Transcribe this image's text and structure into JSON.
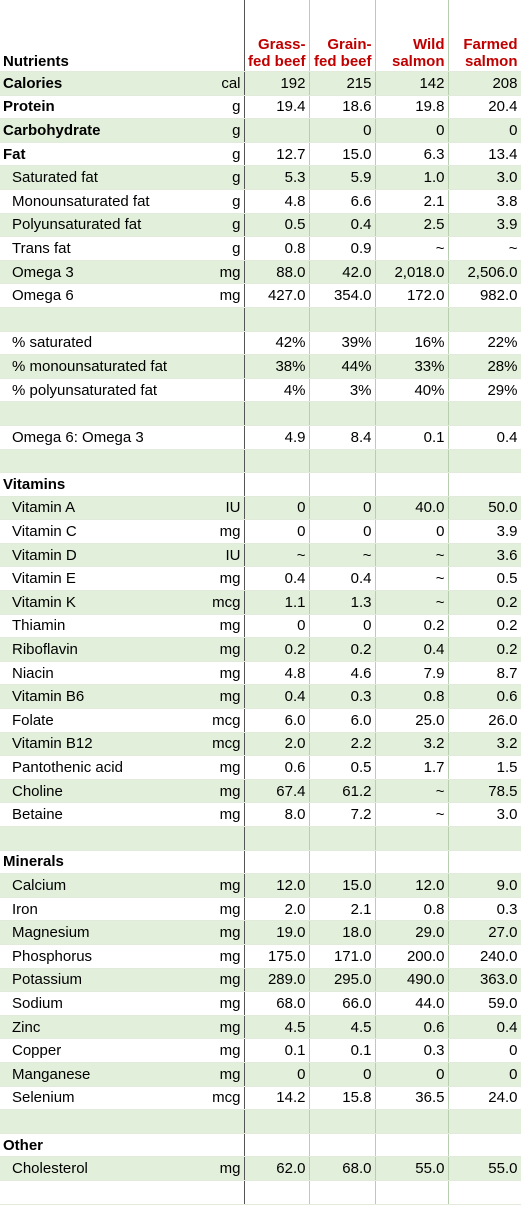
{
  "header": {
    "nutrients_label": "Nutrients",
    "columns": [
      "Grass-fed beef",
      "Grain-fed beef",
      "Wild salmon",
      "Farmed salmon"
    ]
  },
  "rows": [
    {
      "name": "Calories",
      "unit": "cal",
      "values": [
        "192",
        "215",
        "142",
        "208"
      ],
      "bold": true
    },
    {
      "name": "Protein",
      "unit": "g",
      "values": [
        "19.4",
        "18.6",
        "19.8",
        "20.4"
      ],
      "bold": true
    },
    {
      "name": "Carbohydrate",
      "unit": "g",
      "values": [
        "",
        "0",
        "0",
        "0"
      ],
      "bold": true
    },
    {
      "name": "Fat",
      "unit": "g",
      "values": [
        "12.7",
        "15.0",
        "6.3",
        "13.4"
      ],
      "bold": true
    },
    {
      "name": "Saturated fat",
      "unit": "g",
      "values": [
        "5.3",
        "5.9",
        "1.0",
        "3.0"
      ]
    },
    {
      "name": "Monounsaturated fat",
      "unit": "g",
      "values": [
        "4.8",
        "6.6",
        "2.1",
        "3.8"
      ]
    },
    {
      "name": "Polyunsaturated fat",
      "unit": "g",
      "values": [
        "0.5",
        "0.4",
        "2.5",
        "3.9"
      ]
    },
    {
      "name": "Trans fat",
      "unit": "g",
      "values": [
        "0.8",
        "0.9",
        "~",
        "~"
      ]
    },
    {
      "name": "Omega 3",
      "unit": "mg",
      "values": [
        "88.0",
        "42.0",
        "2,018.0",
        "2,506.0"
      ]
    },
    {
      "name": "Omega 6",
      "unit": "mg",
      "values": [
        "427.0",
        "354.0",
        "172.0",
        "982.0"
      ]
    },
    {
      "name": "",
      "unit": "",
      "values": [
        "",
        "",
        "",
        ""
      ],
      "blank": true
    },
    {
      "name": "% saturated",
      "unit": "",
      "values": [
        "42%",
        "39%",
        "16%",
        "22%"
      ]
    },
    {
      "name": "% monounsaturated fat",
      "unit": "",
      "values": [
        "38%",
        "44%",
        "33%",
        "28%"
      ]
    },
    {
      "name": "% polyunsaturated fat",
      "unit": "",
      "values": [
        "4%",
        "3%",
        "40%",
        "29%"
      ]
    },
    {
      "name": "",
      "unit": "",
      "values": [
        "",
        "",
        "",
        ""
      ],
      "blank": true
    },
    {
      "name": "Omega 6: Omega 3",
      "unit": "",
      "values": [
        "4.9",
        "8.4",
        "0.1",
        "0.4"
      ]
    },
    {
      "name": "",
      "unit": "",
      "values": [
        "",
        "",
        "",
        ""
      ],
      "blank": true
    },
    {
      "name": "Vitamins",
      "unit": "",
      "values": [
        "",
        "",
        "",
        ""
      ],
      "bold": true,
      "section": true
    },
    {
      "name": "Vitamin A",
      "unit": "IU",
      "values": [
        "0",
        "0",
        "40.0",
        "50.0"
      ]
    },
    {
      "name": "Vitamin C",
      "unit": "mg",
      "values": [
        "0",
        "0",
        "0",
        "3.9"
      ]
    },
    {
      "name": "Vitamin D",
      "unit": "IU",
      "values": [
        "~",
        "~",
        "~",
        "3.6"
      ]
    },
    {
      "name": "Vitamin E",
      "unit": "mg",
      "values": [
        "0.4",
        "0.4",
        "~",
        "0.5"
      ]
    },
    {
      "name": "Vitamin K",
      "unit": "mcg",
      "values": [
        "1.1",
        "1.3",
        "~",
        "0.2"
      ]
    },
    {
      "name": "Thiamin",
      "unit": "mg",
      "values": [
        "0",
        "0",
        "0.2",
        "0.2"
      ]
    },
    {
      "name": "Riboflavin",
      "unit": "mg",
      "values": [
        "0.2",
        "0.2",
        "0.4",
        "0.2"
      ]
    },
    {
      "name": "Niacin",
      "unit": "mg",
      "values": [
        "4.8",
        "4.6",
        "7.9",
        "8.7"
      ]
    },
    {
      "name": "Vitamin B6",
      "unit": "mg",
      "values": [
        "0.4",
        "0.3",
        "0.8",
        "0.6"
      ]
    },
    {
      "name": "Folate",
      "unit": "mcg",
      "values": [
        "6.0",
        "6.0",
        "25.0",
        "26.0"
      ]
    },
    {
      "name": "Vitamin B12",
      "unit": "mcg",
      "values": [
        "2.0",
        "2.2",
        "3.2",
        "3.2"
      ]
    },
    {
      "name": "Pantothenic acid",
      "unit": "mg",
      "values": [
        "0.6",
        "0.5",
        "1.7",
        "1.5"
      ]
    },
    {
      "name": "Choline",
      "unit": "mg",
      "values": [
        "67.4",
        "61.2",
        "~",
        "78.5"
      ]
    },
    {
      "name": "Betaine",
      "unit": "mg",
      "values": [
        "8.0",
        "7.2",
        "~",
        "3.0"
      ]
    },
    {
      "name": "",
      "unit": "",
      "values": [
        "",
        "",
        "",
        ""
      ],
      "blank": true
    },
    {
      "name": "Minerals",
      "unit": "",
      "values": [
        "",
        "",
        "",
        ""
      ],
      "bold": true,
      "section": true
    },
    {
      "name": "Calcium",
      "unit": "mg",
      "values": [
        "12.0",
        "15.0",
        "12.0",
        "9.0"
      ]
    },
    {
      "name": "Iron",
      "unit": "mg",
      "values": [
        "2.0",
        "2.1",
        "0.8",
        "0.3"
      ]
    },
    {
      "name": "Magnesium",
      "unit": "mg",
      "values": [
        "19.0",
        "18.0",
        "29.0",
        "27.0"
      ]
    },
    {
      "name": "Phosphorus",
      "unit": "mg",
      "values": [
        "175.0",
        "171.0",
        "200.0",
        "240.0"
      ]
    },
    {
      "name": "Potassium",
      "unit": "mg",
      "values": [
        "289.0",
        "295.0",
        "490.0",
        "363.0"
      ]
    },
    {
      "name": "Sodium",
      "unit": "mg",
      "values": [
        "68.0",
        "66.0",
        "44.0",
        "59.0"
      ]
    },
    {
      "name": "Zinc",
      "unit": "mg",
      "values": [
        "4.5",
        "4.5",
        "0.6",
        "0.4"
      ]
    },
    {
      "name": "Copper",
      "unit": "mg",
      "values": [
        "0.1",
        "0.1",
        "0.3",
        "0"
      ]
    },
    {
      "name": "Manganese",
      "unit": "mg",
      "values": [
        "0",
        "0",
        "0",
        "0"
      ]
    },
    {
      "name": "Selenium",
      "unit": "mcg",
      "values": [
        "14.2",
        "15.8",
        "36.5",
        "24.0"
      ]
    },
    {
      "name": "",
      "unit": "",
      "values": [
        "",
        "",
        "",
        ""
      ],
      "blank": true
    },
    {
      "name": "Other",
      "unit": "",
      "values": [
        "",
        "",
        "",
        ""
      ],
      "bold": true,
      "section": true
    },
    {
      "name": "Cholesterol",
      "unit": "mg",
      "values": [
        "62.0",
        "68.0",
        "55.0",
        "55.0"
      ]
    },
    {
      "name": "",
      "unit": "",
      "values": [
        "",
        "",
        "",
        ""
      ],
      "blank": true
    }
  ]
}
